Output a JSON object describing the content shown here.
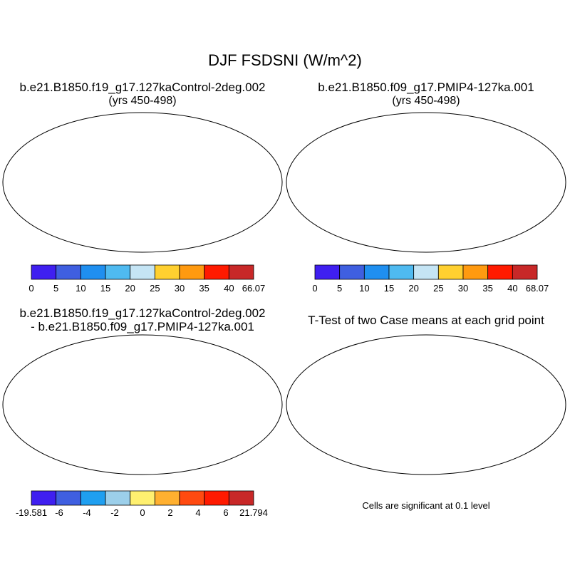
{
  "figure": {
    "title": "DJF FSDSNI (W/m^2)",
    "panels": [
      {
        "id": "case1",
        "title_line1": "b.e21.B1850.f19_g17.127kaControl-2deg.002",
        "title_line2": "(yrs 450-498)",
        "colorbar": {
          "labels": [
            "0",
            "5",
            "10",
            "15",
            "20",
            "25",
            "30",
            "35",
            "40",
            "66.07"
          ],
          "colors": [
            "#3f1ff0",
            "#3f5fe0",
            "#1f8ff0",
            "#4fbaf0",
            "#c5e5f5",
            "#ffd030",
            "#ff9a10",
            "#ff1a00",
            "#c82828"
          ]
        }
      },
      {
        "id": "case2",
        "title_line1": "b.e21.B1850.f09_g17.PMIP4-127ka.001",
        "title_line2": "(yrs 450-498)",
        "colorbar": {
          "labels": [
            "0",
            "5",
            "10",
            "15",
            "20",
            "25",
            "30",
            "35",
            "40",
            "68.07"
          ],
          "colors": [
            "#3f1ff0",
            "#3f5fe0",
            "#1f8ff0",
            "#4fbaf0",
            "#c5e5f5",
            "#ffd030",
            "#ff9a10",
            "#ff1a00",
            "#c82828"
          ]
        }
      },
      {
        "id": "difference",
        "title_line1": "b.e21.B1850.f19_g17.127kaControl-2deg.002",
        "title_line2": "- b.e21.B1850.f09_g17.PMIP4-127ka.001",
        "colorbar": {
          "labels": [
            "-19.581",
            "-6",
            "-4",
            "-2",
            "0",
            "2",
            "4",
            "6",
            "21.794"
          ],
          "colors": [
            "#3f1ff0",
            "#3f5fe0",
            "#1f9ff0",
            "#9ccfea",
            "#fff070",
            "#ffb030",
            "#ff4a10",
            "#ff1a00",
            "#c82828"
          ]
        }
      },
      {
        "id": "ttest",
        "title_line1": "T-Test of two Case means at each grid point",
        "note": "Cells are significant at 0.1 level",
        "significant_color": "#ff0000"
      }
    ]
  }
}
